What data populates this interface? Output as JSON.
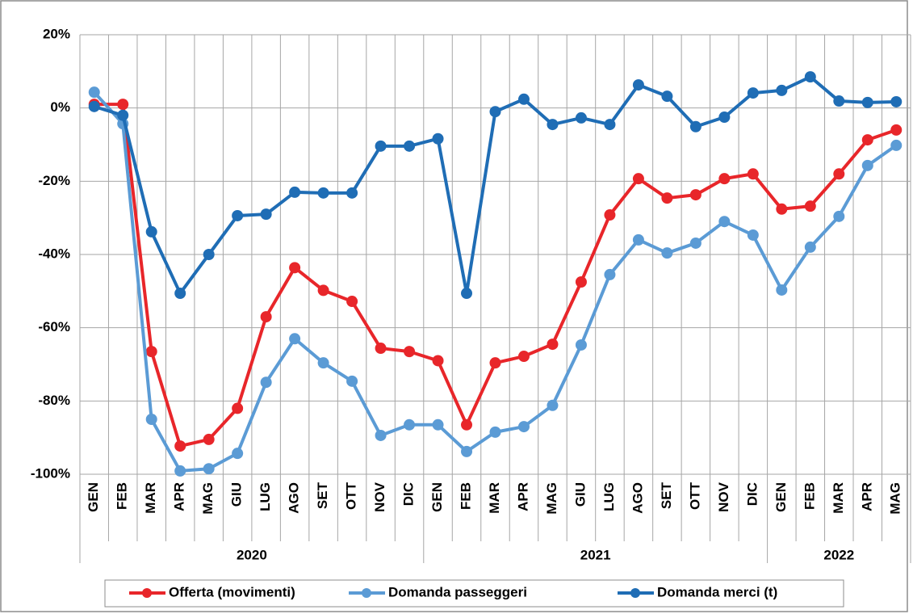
{
  "chart_data": {
    "type": "line",
    "categories": [
      "GEN",
      "FEB",
      "MAR",
      "APR",
      "MAG",
      "GIU",
      "LUG",
      "AGO",
      "SET",
      "OTT",
      "NOV",
      "DIC",
      "GEN",
      "FEB",
      "MAR",
      "APR",
      "MAG",
      "GIU",
      "LUG",
      "AGO",
      "SET",
      "OTT",
      "NOV",
      "DIC",
      "GEN",
      "FEB",
      "MAR",
      "APR",
      "MAG"
    ],
    "category_groups": [
      {
        "label": "2020",
        "size": 12
      },
      {
        "label": "2021",
        "size": 12
      },
      {
        "label": "2022",
        "size": 5
      }
    ],
    "series": [
      {
        "name": "Offerta (movimenti)",
        "color": "#e8262a",
        "values": [
          1,
          1,
          -66.5,
          -92.3,
          -90.5,
          -82,
          -57,
          -43.6,
          -49.8,
          -52.8,
          -65.6,
          -66.5,
          -69,
          -86.5,
          -69.6,
          -67.8,
          -64.5,
          -47.5,
          -29.2,
          -19.3,
          -24.6,
          -23.7,
          -19.3,
          -18,
          -27.6,
          -26.8,
          -18,
          -8.7,
          -6
        ]
      },
      {
        "name": "Domanda passeggeri",
        "color": "#5b9bd5",
        "values": [
          4.3,
          -4.3,
          -85,
          -99.1,
          -98.5,
          -94.3,
          -74.9,
          -63,
          -69.6,
          -74.6,
          -89.4,
          -86.5,
          -86.5,
          -93.8,
          -88.5,
          -87,
          -81.2,
          -64.7,
          -45.5,
          -36,
          -39.6,
          -36.9,
          -31,
          -34.7,
          -49.7,
          -38,
          -29.6,
          -15.7,
          -10.2
        ]
      },
      {
        "name": "Domanda merci (t)",
        "color": "#1f6db5",
        "values": [
          0.4,
          -2,
          -33.8,
          -50.6,
          -40,
          -29.4,
          -29,
          -23,
          -23.2,
          -23.2,
          -10.4,
          -10.4,
          -8.4,
          -50.6,
          -1,
          2.4,
          -4.5,
          -2.7,
          -4.5,
          6.3,
          3.2,
          -5.1,
          -2.5,
          4.1,
          4.8,
          8.5,
          1.9,
          1.5,
          1.7
        ]
      }
    ],
    "ylim": [
      -100,
      20
    ],
    "yticks": [
      {
        "value": -100,
        "label": "-100%"
      },
      {
        "value": -80,
        "label": "-80%"
      },
      {
        "value": -60,
        "label": "-60%"
      },
      {
        "value": -40,
        "label": "-40%"
      },
      {
        "value": -20,
        "label": "-20%"
      },
      {
        "value": 0,
        "label": "0%"
      },
      {
        "value": 20,
        "label": "20%"
      }
    ],
    "grid": true
  }
}
